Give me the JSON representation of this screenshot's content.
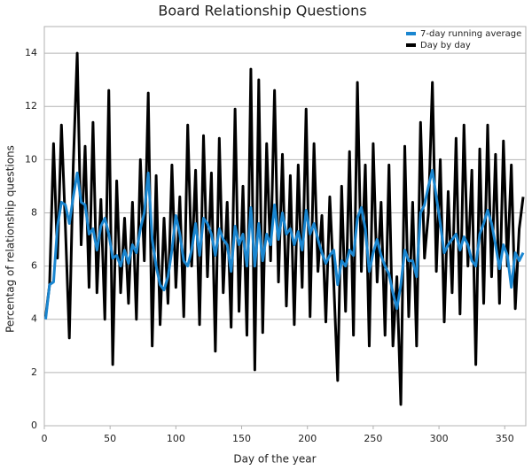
{
  "chart_data": {
    "type": "line",
    "title": "Board Relationship Questions",
    "x_label": "Day of the year",
    "y_label": "Percentag of relationship questions",
    "x": [
      1,
      4,
      7,
      10,
      13,
      16,
      19,
      22,
      25,
      28,
      31,
      34,
      37,
      40,
      43,
      46,
      49,
      52,
      55,
      58,
      61,
      64,
      67,
      70,
      73,
      76,
      79,
      82,
      85,
      88,
      91,
      94,
      97,
      100,
      103,
      106,
      109,
      112,
      115,
      118,
      121,
      124,
      127,
      130,
      133,
      136,
      139,
      142,
      145,
      148,
      151,
      154,
      157,
      160,
      163,
      166,
      169,
      172,
      175,
      178,
      181,
      184,
      187,
      190,
      193,
      196,
      199,
      202,
      205,
      208,
      211,
      214,
      217,
      220,
      223,
      226,
      229,
      232,
      235,
      238,
      241,
      244,
      247,
      250,
      253,
      256,
      259,
      262,
      265,
      268,
      271,
      274,
      277,
      280,
      283,
      286,
      289,
      292,
      295,
      298,
      301,
      304,
      307,
      310,
      313,
      316,
      319,
      322,
      325,
      328,
      331,
      334,
      337,
      340,
      343,
      346,
      349,
      352,
      355,
      358,
      361,
      364
    ],
    "series": [
      {
        "name": "7-day running average",
        "color": "#1a86d0",
        "values": [
          4.0,
          5.3,
          5.4,
          7.5,
          8.4,
          8.3,
          7.6,
          8.6,
          9.5,
          8.4,
          8.3,
          7.2,
          7.4,
          6.6,
          7.5,
          7.8,
          7.2,
          6.3,
          6.4,
          6.0,
          6.6,
          6.1,
          6.8,
          6.5,
          7.4,
          8.0,
          9.5,
          7.0,
          6.0,
          5.3,
          5.1,
          5.6,
          6.6,
          7.9,
          7.2,
          6.2,
          6.0,
          6.6,
          7.6,
          6.4,
          7.8,
          7.6,
          7.2,
          6.4,
          7.4,
          7.0,
          6.8,
          5.8,
          7.5,
          6.8,
          7.2,
          6.0,
          8.2,
          6.0,
          7.6,
          6.2,
          7.2,
          6.8,
          8.3,
          7.0,
          8.0,
          7.2,
          7.4,
          6.8,
          7.3,
          6.6,
          8.1,
          7.2,
          7.6,
          7.0,
          6.5,
          6.1,
          6.4,
          6.6,
          5.3,
          6.2,
          6.0,
          6.6,
          6.4,
          7.8,
          8.2,
          7.4,
          5.8,
          6.5,
          7.0,
          6.4,
          6.0,
          5.7,
          5.0,
          4.4,
          5.3,
          6.6,
          6.2,
          6.2,
          5.6,
          8.0,
          8.3,
          9.0,
          9.6,
          8.6,
          7.6,
          6.5,
          6.8,
          7.0,
          7.2,
          6.6,
          7.1,
          6.8,
          6.2,
          6.0,
          7.2,
          7.6,
          8.1,
          7.6,
          6.8,
          5.9,
          6.8,
          6.4,
          5.2,
          6.5,
          6.2,
          6.5
        ]
      },
      {
        "name": "Day by day",
        "color": "#000000",
        "values": [
          4.1,
          5.3,
          10.6,
          6.3,
          11.3,
          7.5,
          3.3,
          9.8,
          14.0,
          6.8,
          10.5,
          5.2,
          11.4,
          5.0,
          8.5,
          4.0,
          12.6,
          2.3,
          9.2,
          5.0,
          7.8,
          4.6,
          8.4,
          4.0,
          10.0,
          6.2,
          12.5,
          3.0,
          9.4,
          3.8,
          7.8,
          4.6,
          9.8,
          5.2,
          8.6,
          4.1,
          11.3,
          6.0,
          9.6,
          3.8,
          10.9,
          5.6,
          9.5,
          2.8,
          10.8,
          5.0,
          8.4,
          3.7,
          11.9,
          4.3,
          9.0,
          3.4,
          13.4,
          2.1,
          13.0,
          3.5,
          10.6,
          6.2,
          12.6,
          5.4,
          10.2,
          4.5,
          9.4,
          3.8,
          9.8,
          5.2,
          11.9,
          4.1,
          10.6,
          5.8,
          7.9,
          3.9,
          8.6,
          5.4,
          1.7,
          9.0,
          4.3,
          10.3,
          3.4,
          12.9,
          5.8,
          9.8,
          3.0,
          10.6,
          5.4,
          8.4,
          3.4,
          9.8,
          3.0,
          5.6,
          0.8,
          10.5,
          4.1,
          8.4,
          3.0,
          11.4,
          6.3,
          8.0,
          12.9,
          5.8,
          10.0,
          3.9,
          8.8,
          5.0,
          10.8,
          4.2,
          11.3,
          6.0,
          9.6,
          2.3,
          10.4,
          4.6,
          11.3,
          5.6,
          10.2,
          4.6,
          10.7,
          6.0,
          9.8,
          4.4,
          7.4,
          8.6
        ]
      }
    ],
    "xlim": [
      0,
      366
    ],
    "xticks": [
      0,
      50,
      100,
      150,
      200,
      250,
      300,
      350
    ],
    "ylim": [
      0,
      15
    ],
    "yticks": [
      0,
      2,
      4,
      6,
      8,
      10,
      12,
      14
    ],
    "grid": true,
    "legend": "top-right"
  }
}
